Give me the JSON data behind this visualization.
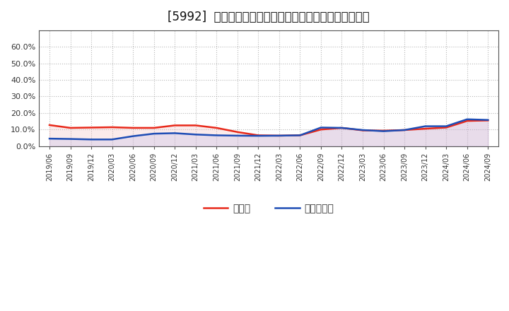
{
  "title": "[5992]  現預金、有利子負債の総資産に対する比率の推移",
  "x_labels": [
    "2019/06",
    "2019/09",
    "2019/12",
    "2020/03",
    "2020/06",
    "2020/09",
    "2020/12",
    "2021/03",
    "2021/06",
    "2021/09",
    "2021/12",
    "2022/03",
    "2022/06",
    "2022/09",
    "2022/12",
    "2023/03",
    "2023/06",
    "2023/09",
    "2023/12",
    "2024/03",
    "2024/06",
    "2024/09"
  ],
  "cash": [
    0.127,
    0.11,
    0.112,
    0.114,
    0.11,
    0.11,
    0.125,
    0.125,
    0.11,
    0.085,
    0.065,
    0.063,
    0.065,
    0.1,
    0.11,
    0.095,
    0.093,
    0.097,
    0.105,
    0.112,
    0.152,
    0.155
  ],
  "debt": [
    0.045,
    0.043,
    0.04,
    0.04,
    0.06,
    0.075,
    0.078,
    0.07,
    0.065,
    0.063,
    0.062,
    0.063,
    0.065,
    0.112,
    0.11,
    0.097,
    0.09,
    0.097,
    0.12,
    0.12,
    0.162,
    0.158
  ],
  "cash_color": "#e8291a",
  "debt_color": "#1e4db5",
  "fill_cash_color": "#f0b0b0",
  "fill_debt_color": "#b0b0e8",
  "background_color": "#ffffff",
  "grid_color": "#888888",
  "ylim": [
    0.0,
    0.7
  ],
  "yticks": [
    0.0,
    0.1,
    0.2,
    0.3,
    0.4,
    0.5,
    0.6
  ],
  "legend_cash": "現預金",
  "legend_debt": "有利子負債",
  "title_fontsize": 12
}
